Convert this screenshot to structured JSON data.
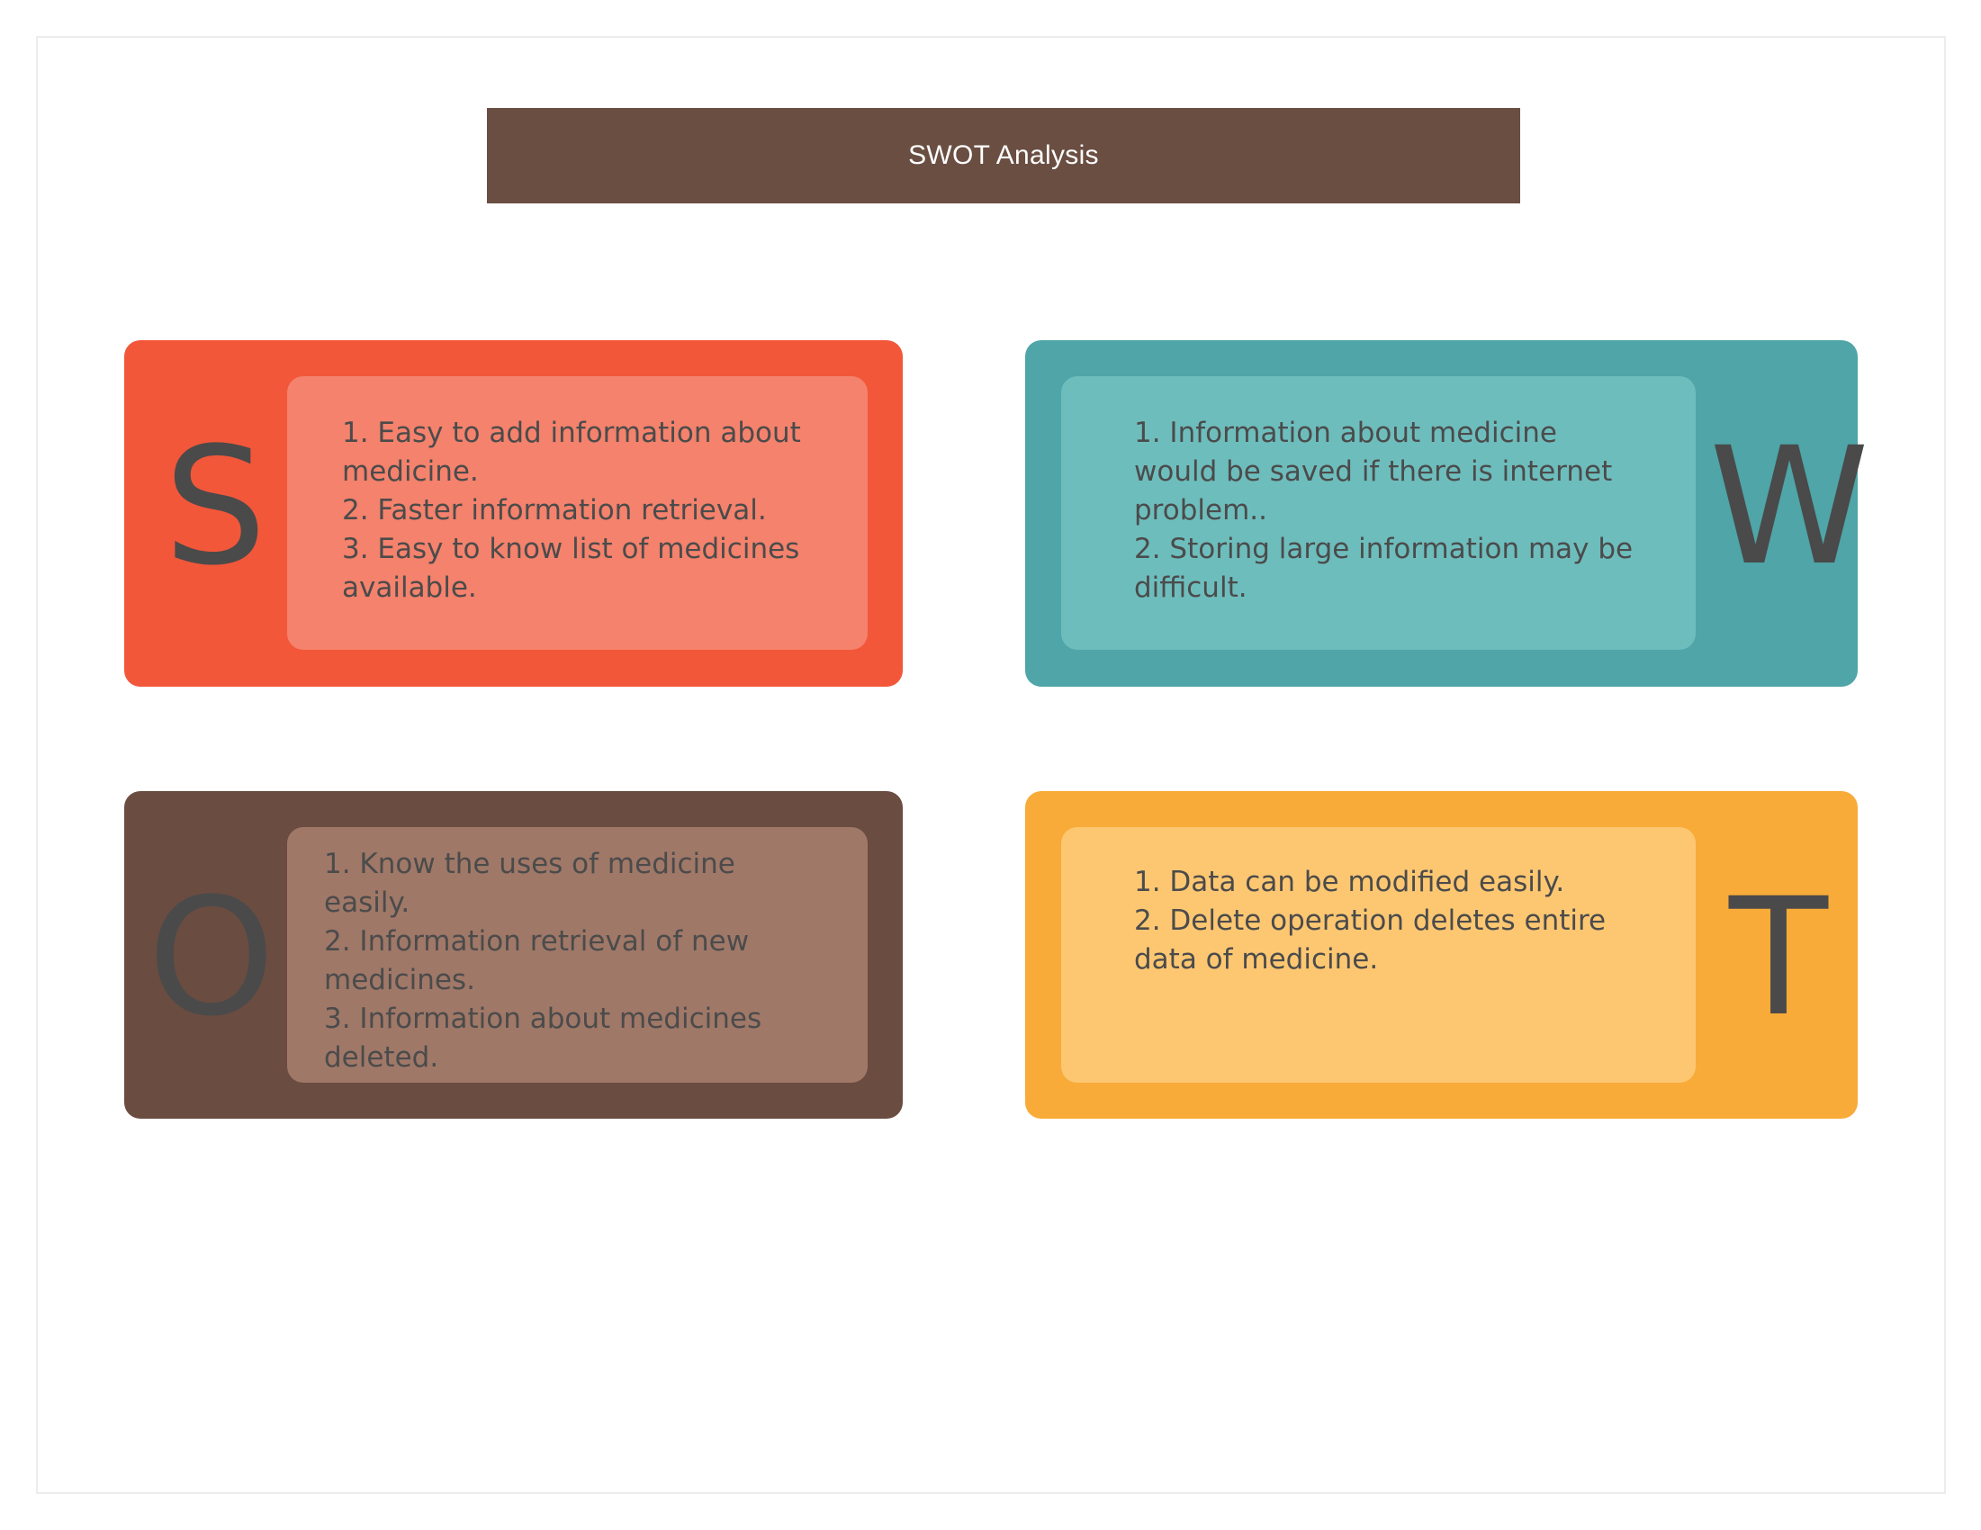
{
  "title": "SWOT Analysis",
  "colors": {
    "title_bar": "#6a4e42",
    "strengths": "#f2573a",
    "weaknesses": "#4fa5a7",
    "opportunities": "#6a4c41",
    "threats": "#f8ab39"
  },
  "quadrants": {
    "strengths": {
      "letter": "S",
      "text": "1. Easy to add information about medicine.\n2. Faster information retrieval.\n3. Easy to know list of medicines available."
    },
    "weaknesses": {
      "letter": "W",
      "text": "1. Information about medicine would be saved if there is internet problem..\n2. Storing large information may be difficult."
    },
    "opportunities": {
      "letter": "O",
      "text": "1. Know the uses of medicine easily.\n2. Information retrieval of new medicines.\n3. Information about medicines deleted."
    },
    "threats": {
      "letter": "T",
      "text": "1. Data can be modified easily.\n2. Delete operation deletes entire data of medicine."
    }
  }
}
